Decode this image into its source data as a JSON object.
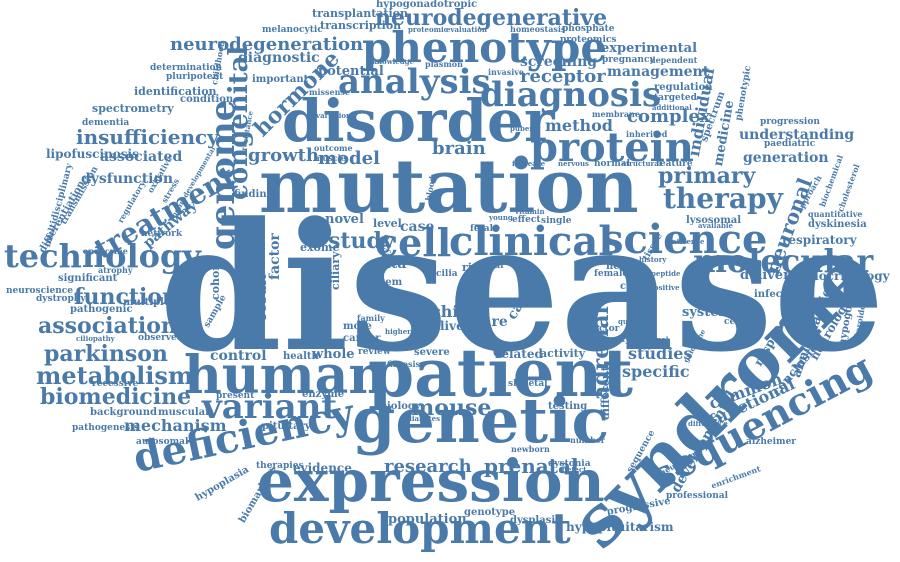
{
  "colors": {
    "word": "#4a7aa9",
    "background": "#ffffff"
  },
  "words": [
    {
      "text": "disease"
    },
    {
      "text": "mutation"
    },
    {
      "text": "syndrome"
    },
    {
      "text": "patient"
    },
    {
      "text": "disorder"
    },
    {
      "text": "genetic"
    },
    {
      "text": "expression"
    },
    {
      "text": "human"
    },
    {
      "text": "phenotype"
    },
    {
      "text": "development"
    },
    {
      "text": "clinical"
    },
    {
      "text": "cell"
    },
    {
      "text": "protein"
    },
    {
      "text": "science"
    },
    {
      "text": "sequencing"
    },
    {
      "text": "analysis"
    },
    {
      "text": "deficiency"
    },
    {
      "text": "diagnosis"
    },
    {
      "text": "genome"
    },
    {
      "text": "variant"
    },
    {
      "text": "technology"
    },
    {
      "text": "molecular"
    },
    {
      "text": "therapy"
    },
    {
      "text": "treatment"
    },
    {
      "text": "neurodegenerative"
    },
    {
      "text": "neurodegeneration"
    },
    {
      "text": "congenital"
    },
    {
      "text": "metabolism"
    },
    {
      "text": "parkinson"
    },
    {
      "text": "biomedicine"
    },
    {
      "text": "association"
    },
    {
      "text": "function"
    },
    {
      "text": "insufficiency"
    },
    {
      "text": "primary"
    },
    {
      "text": "mouse"
    },
    {
      "text": "research"
    },
    {
      "text": "prenatal"
    },
    {
      "text": "study"
    },
    {
      "text": "hormone"
    },
    {
      "text": "adrenal"
    },
    {
      "text": "neuronal"
    },
    {
      "text": "receptor"
    },
    {
      "text": "method"
    },
    {
      "text": "complex"
    },
    {
      "text": "growth"
    },
    {
      "text": "model"
    },
    {
      "text": "brain"
    },
    {
      "text": "mechanism"
    },
    {
      "text": "control"
    },
    {
      "text": "evidence"
    },
    {
      "text": "population"
    },
    {
      "text": "developmental"
    },
    {
      "text": "studies"
    },
    {
      "text": "specific"
    },
    {
      "text": "common"
    },
    {
      "text": "functional"
    },
    {
      "text": "individual"
    },
    {
      "text": "generation"
    },
    {
      "text": "understanding"
    },
    {
      "text": "screening"
    },
    {
      "text": "management"
    },
    {
      "text": "experimental"
    },
    {
      "text": "diagnostic"
    },
    {
      "text": "potential"
    },
    {
      "text": "associated"
    },
    {
      "text": "dysfunction"
    },
    {
      "text": "pathway"
    },
    {
      "text": "factor"
    },
    {
      "text": "result"
    },
    {
      "text": "system"
    },
    {
      "text": "delivery"
    },
    {
      "text": "abnormalities"
    },
    {
      "text": "neurological"
    },
    {
      "text": "conclusion"
    },
    {
      "text": "response"
    },
    {
      "text": "respiratory"
    },
    {
      "text": "endocrinology"
    },
    {
      "text": "hypopituitarism"
    },
    {
      "text": "child"
    },
    {
      "text": "rare"
    },
    {
      "text": "liver"
    },
    {
      "text": "cause"
    },
    {
      "text": "data"
    },
    {
      "text": "case"
    },
    {
      "text": "novel"
    },
    {
      "text": "whole"
    },
    {
      "text": "related"
    },
    {
      "text": "activity"
    },
    {
      "text": "different"
    },
    {
      "text": "level"
    },
    {
      "text": "cohort"
    },
    {
      "text": "ciliary"
    },
    {
      "text": "exome"
    },
    {
      "text": "stem"
    },
    {
      "text": "type"
    },
    {
      "text": "health"
    },
    {
      "text": "more"
    },
    {
      "text": "cancer"
    },
    {
      "text": "severe"
    },
    {
      "text": "review"
    },
    {
      "text": "enzyme"
    },
    {
      "text": "biology"
    },
    {
      "text": "testing"
    },
    {
      "text": "pituitary"
    },
    {
      "text": "muscular"
    },
    {
      "text": "background"
    },
    {
      "text": "present"
    },
    {
      "text": "genotype"
    },
    {
      "text": "dysplasia"
    },
    {
      "text": "dystonia"
    },
    {
      "text": "progressive"
    },
    {
      "text": "professional"
    },
    {
      "text": "biomarkers"
    },
    {
      "text": "hypoplasia"
    },
    {
      "text": "therapies"
    },
    {
      "text": "autosomal"
    },
    {
      "text": "pathogenesis"
    },
    {
      "text": "recessive"
    },
    {
      "text": "observed"
    },
    {
      "text": "pathogenic"
    },
    {
      "text": "dystrophy"
    },
    {
      "text": "neuroscience"
    },
    {
      "text": "significant"
    },
    {
      "text": "endocrine"
    },
    {
      "text": "differentiation"
    },
    {
      "text": "transmission"
    },
    {
      "text": "multidisciplinary"
    },
    {
      "text": "lipofuscinosis"
    },
    {
      "text": "dementia"
    },
    {
      "text": "spectrometry"
    },
    {
      "text": "identification"
    },
    {
      "text": "determination"
    },
    {
      "text": "pluripotent"
    },
    {
      "text": "condition"
    },
    {
      "text": "important"
    },
    {
      "text": "melanocytic"
    },
    {
      "text": "transplantation"
    },
    {
      "text": "transcription"
    },
    {
      "text": "hypogonadotropic"
    },
    {
      "text": "phosphate"
    },
    {
      "text": "proteomics"
    },
    {
      "text": "homeostasis"
    },
    {
      "text": "pregnancy"
    },
    {
      "text": "dependent"
    },
    {
      "text": "regulation"
    },
    {
      "text": "targeted"
    },
    {
      "text": "phenotypic"
    },
    {
      "text": "progression"
    },
    {
      "text": "paediatric"
    },
    {
      "text": "medicine"
    },
    {
      "text": "spectrum"
    },
    {
      "text": "lysosomal"
    },
    {
      "text": "dyskinesia"
    },
    {
      "text": "quantitative"
    },
    {
      "text": "biochemical"
    },
    {
      "text": "cholesterol"
    },
    {
      "text": "approach"
    },
    {
      "text": "infection"
    },
    {
      "text": "cellular"
    },
    {
      "text": "hypogonadism"
    },
    {
      "text": "steroidogenic"
    },
    {
      "text": "alzheimer"
    },
    {
      "text": "enrichment"
    },
    {
      "text": "neurology"
    },
    {
      "text": "sequence"
    },
    {
      "text": "neuron"
    },
    {
      "text": "ceroid"
    },
    {
      "text": "female"
    },
    {
      "text": "tissue"
    },
    {
      "text": "vector"
    },
    {
      "text": "single"
    },
    {
      "text": "risk"
    },
    {
      "text": "trial"
    },
    {
      "text": "missense"
    },
    {
      "text": "plasmon"
    },
    {
      "text": "childhood"
    },
    {
      "text": "invasive"
    },
    {
      "text": "membrane"
    },
    {
      "text": "feature"
    },
    {
      "text": "inherited"
    },
    {
      "text": "normal"
    },
    {
      "text": "knowledge"
    },
    {
      "text": "proteomic"
    },
    {
      "text": "evaluation"
    },
    {
      "text": "cilia"
    },
    {
      "text": "fetal"
    },
    {
      "text": "effect"
    },
    {
      "text": "skeletal"
    },
    {
      "text": "fibrosis"
    },
    {
      "text": "family"
    },
    {
      "text": "newborn"
    },
    {
      "text": "number"
    },
    {
      "text": "obesity"
    },
    {
      "text": "outcome"
    },
    {
      "text": "muscle"
    },
    {
      "text": "additional"
    },
    {
      "text": "defect"
    },
    {
      "text": "variation"
    },
    {
      "text": "guideline"
    },
    {
      "text": "available"
    },
    {
      "text": "structural"
    },
    {
      "text": "increase"
    },
    {
      "text": "multiple"
    },
    {
      "text": "network"
    },
    {
      "text": "finding"
    },
    {
      "text": "sample"
    },
    {
      "text": "regulatory"
    },
    {
      "text": "oxidative"
    },
    {
      "text": "stress"
    },
    {
      "text": "neurodevelopmental"
    },
    {
      "text": "atrophy"
    },
    {
      "text": "ciliopathy"
    },
    {
      "text": "resistance"
    },
    {
      "text": "antisense"
    },
    {
      "text": "national"
    },
    {
      "text": "support"
    },
    {
      "text": "difference"
    },
    {
      "text": "diabetes"
    },
    {
      "text": "higher"
    },
    {
      "text": "young"
    },
    {
      "text": "vitamin"
    },
    {
      "text": "blood"
    },
    {
      "text": "nervous"
    },
    {
      "text": "puberty"
    },
    {
      "text": "peptide"
    },
    {
      "text": "positive"
    },
    {
      "text": "quality"
    },
    {
      "text": "history"
    }
  ]
}
